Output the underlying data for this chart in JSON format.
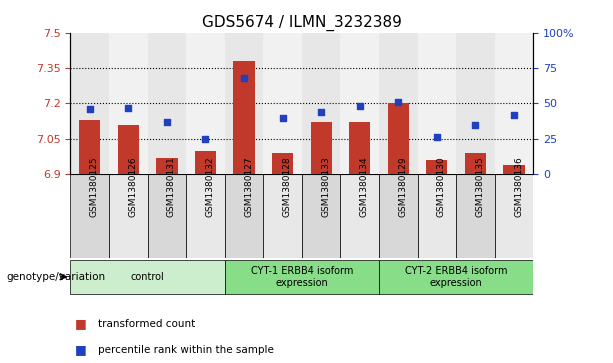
{
  "title": "GDS5674 / ILMN_3232389",
  "samples": [
    "GSM1380125",
    "GSM1380126",
    "GSM1380131",
    "GSM1380132",
    "GSM1380127",
    "GSM1380128",
    "GSM1380133",
    "GSM1380134",
    "GSM1380129",
    "GSM1380130",
    "GSM1380135",
    "GSM1380136"
  ],
  "bar_values": [
    7.13,
    7.11,
    6.97,
    7.0,
    7.38,
    6.99,
    7.12,
    7.12,
    7.2,
    6.96,
    6.99,
    6.94
  ],
  "dot_values": [
    46,
    47,
    37,
    25,
    68,
    40,
    44,
    48,
    51,
    26,
    35,
    42
  ],
  "bar_color": "#C0392B",
  "dot_color": "#2040C0",
  "ylim_left": [
    6.9,
    7.5
  ],
  "ylim_right": [
    0,
    100
  ],
  "yticks_left": [
    6.9,
    7.05,
    7.2,
    7.35,
    7.5
  ],
  "yticks_right": [
    0,
    25,
    50,
    75,
    100
  ],
  "ytick_labels_left": [
    "6.9",
    "7.05",
    "7.2",
    "7.35",
    "7.5"
  ],
  "ytick_labels_right": [
    "0",
    "25",
    "50",
    "75",
    "100%"
  ],
  "hlines": [
    7.05,
    7.2,
    7.35
  ],
  "groups": [
    {
      "label": "control",
      "start": 0,
      "end": 4,
      "color": "#cceecc"
    },
    {
      "label": "CYT-1 ERBB4 isoform\nexpression",
      "start": 4,
      "end": 8,
      "color": "#88dd88"
    },
    {
      "label": "CYT-2 ERBB4 isoform\nexpression",
      "start": 8,
      "end": 12,
      "color": "#88dd88"
    }
  ],
  "col_bg_even": "#d8d8d8",
  "col_bg_odd": "#e8e8e8",
  "legend_items": [
    {
      "label": "transformed count",
      "color": "#C0392B"
    },
    {
      "label": "percentile rank within the sample",
      "color": "#2040C0"
    }
  ],
  "genotype_label": "genotype/variation",
  "plot_bg": "#ffffff",
  "bar_bottom": 6.9
}
